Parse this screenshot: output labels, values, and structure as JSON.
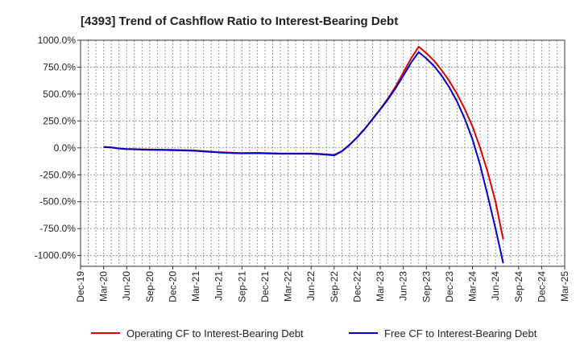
{
  "chart_data": {
    "type": "line",
    "title": "[4393]  Trend of Cashflow Ratio to Interest-Bearing Debt",
    "xlabel": "",
    "ylabel": "",
    "ylim": [
      -1100,
      1000
    ],
    "yticks": [
      1000,
      750,
      500,
      250,
      0,
      -250,
      -500,
      -750,
      -1000
    ],
    "ytick_labels": [
      "1000.0%",
      "750.0%",
      "500.0%",
      "250.0%",
      "0.0%",
      "-250.0%",
      "-500.0%",
      "-750.0%",
      "-1000.0%"
    ],
    "x_tick_labels": [
      "Dec-19",
      "Mar-20",
      "Jun-20",
      "Sep-20",
      "Dec-20",
      "Mar-21",
      "Jun-21",
      "Sep-21",
      "Dec-21",
      "Mar-22",
      "Jun-22",
      "Sep-22",
      "Dec-22",
      "Mar-23",
      "Jun-23",
      "Sep-23",
      "Dec-23",
      "Mar-24",
      "Jun-24",
      "Sep-24",
      "Dec-24",
      "Mar-25"
    ],
    "grid": true,
    "legend_position": "bottom",
    "series": [
      {
        "name": "Operating CF to Interest-Bearing Debt",
        "color": "#e00000",
        "points": [
          [
            "Mar-20",
            10
          ],
          [
            "Apr-20",
            5
          ],
          [
            "May-20",
            -5
          ],
          [
            "Jun-20",
            -10
          ],
          [
            "Jul-20",
            -12
          ],
          [
            "Aug-20",
            -14
          ],
          [
            "Sep-20",
            -15
          ],
          [
            "Oct-20",
            -16
          ],
          [
            "Nov-20",
            -17
          ],
          [
            "Dec-20",
            -18
          ],
          [
            "Jan-21",
            -20
          ],
          [
            "Feb-21",
            -22
          ],
          [
            "Mar-21",
            -25
          ],
          [
            "Apr-21",
            -30
          ],
          [
            "May-21",
            -35
          ],
          [
            "Jun-21",
            -40
          ],
          [
            "Jul-21",
            -43
          ],
          [
            "Aug-21",
            -46
          ],
          [
            "Sep-21",
            -48
          ],
          [
            "Oct-21",
            -47
          ],
          [
            "Nov-21",
            -46
          ],
          [
            "Dec-21",
            -48
          ],
          [
            "Jan-22",
            -50
          ],
          [
            "Feb-22",
            -52
          ],
          [
            "Mar-22",
            -52
          ],
          [
            "Apr-22",
            -52
          ],
          [
            "May-22",
            -52
          ],
          [
            "Jun-22",
            -52
          ],
          [
            "Jul-22",
            -55
          ],
          [
            "Aug-22",
            -60
          ],
          [
            "Sep-22",
            -65
          ],
          [
            "Oct-22",
            -30
          ],
          [
            "Nov-22",
            30
          ],
          [
            "Dec-22",
            100
          ],
          [
            "Jan-23",
            180
          ],
          [
            "Feb-23",
            270
          ],
          [
            "Mar-23",
            360
          ],
          [
            "Apr-23",
            460
          ],
          [
            "May-23",
            570
          ],
          [
            "Jun-23",
            700
          ],
          [
            "Jul-23",
            830
          ],
          [
            "Aug-23",
            940
          ],
          [
            "Sep-23",
            880
          ],
          [
            "Oct-23",
            810
          ],
          [
            "Nov-23",
            720
          ],
          [
            "Dec-23",
            620
          ],
          [
            "Jan-24",
            500
          ],
          [
            "Feb-24",
            360
          ],
          [
            "Mar-24",
            200
          ],
          [
            "Apr-24",
            0
          ],
          [
            "May-24",
            -230
          ],
          [
            "Jun-24",
            -500
          ],
          [
            "Jul-24",
            -850
          ]
        ]
      },
      {
        "name": "Free CF to Interest-Bearing Debt",
        "color": "#0000cc",
        "points": [
          [
            "Mar-20",
            8
          ],
          [
            "Apr-20",
            3
          ],
          [
            "May-20",
            -6
          ],
          [
            "Jun-20",
            -12
          ],
          [
            "Jul-20",
            -14
          ],
          [
            "Aug-20",
            -16
          ],
          [
            "Sep-20",
            -18
          ],
          [
            "Oct-20",
            -19
          ],
          [
            "Nov-20",
            -20
          ],
          [
            "Dec-20",
            -22
          ],
          [
            "Jan-21",
            -24
          ],
          [
            "Feb-21",
            -26
          ],
          [
            "Mar-21",
            -28
          ],
          [
            "Apr-21",
            -33
          ],
          [
            "May-21",
            -38
          ],
          [
            "Jun-21",
            -43
          ],
          [
            "Jul-21",
            -46
          ],
          [
            "Aug-21",
            -49
          ],
          [
            "Sep-21",
            -51
          ],
          [
            "Oct-21",
            -50
          ],
          [
            "Nov-21",
            -49
          ],
          [
            "Dec-21",
            -51
          ],
          [
            "Jan-22",
            -53
          ],
          [
            "Feb-22",
            -55
          ],
          [
            "Mar-22",
            -55
          ],
          [
            "Apr-22",
            -55
          ],
          [
            "May-22",
            -55
          ],
          [
            "Jun-22",
            -55
          ],
          [
            "Jul-22",
            -58
          ],
          [
            "Aug-22",
            -63
          ],
          [
            "Sep-22",
            -70
          ],
          [
            "Oct-22",
            -33
          ],
          [
            "Nov-22",
            27
          ],
          [
            "Dec-22",
            97
          ],
          [
            "Jan-23",
            177
          ],
          [
            "Feb-23",
            267
          ],
          [
            "Mar-23",
            357
          ],
          [
            "Apr-23",
            450
          ],
          [
            "May-23",
            555
          ],
          [
            "Jun-23",
            670
          ],
          [
            "Jul-23",
            790
          ],
          [
            "Aug-23",
            890
          ],
          [
            "Sep-23",
            830
          ],
          [
            "Oct-23",
            760
          ],
          [
            "Nov-23",
            670
          ],
          [
            "Dec-23",
            560
          ],
          [
            "Jan-24",
            430
          ],
          [
            "Feb-24",
            270
          ],
          [
            "Mar-24",
            80
          ],
          [
            "Apr-24",
            -160
          ],
          [
            "May-24",
            -450
          ],
          [
            "Jun-24",
            -750
          ],
          [
            "Jul-24",
            -1070
          ]
        ]
      }
    ]
  }
}
